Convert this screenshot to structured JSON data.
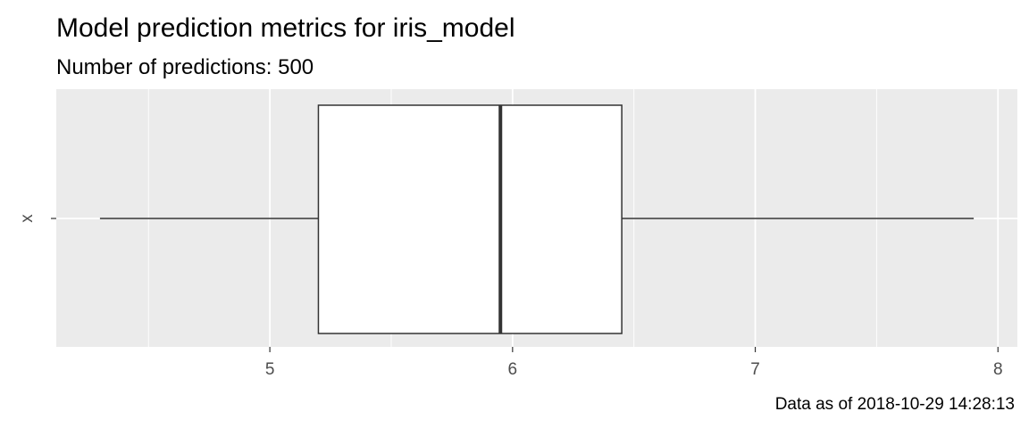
{
  "chart_data": {
    "type": "boxplot",
    "title": "Model prediction metrics for iris_model",
    "subtitle": "Number of predictions: 500",
    "caption": "Data as of 2018-10-29 14:28:13",
    "category": "x",
    "xlim": [
      4.12,
      8.08
    ],
    "x_ticks": [
      5,
      6,
      7,
      8
    ],
    "x_tick_labels": [
      "5",
      "6",
      "7",
      "8"
    ],
    "x_minor_ticks": [
      4.5,
      5.5,
      6.5,
      7.5
    ],
    "box": {
      "min": 4.3,
      "q1": 5.2,
      "median": 5.95,
      "q3": 6.45,
      "max": 7.9
    },
    "grid": true,
    "colors": {
      "panel": "#ebebeb",
      "grid": "#ffffff",
      "box_fill": "#ffffff",
      "box_line": "#333333"
    }
  }
}
